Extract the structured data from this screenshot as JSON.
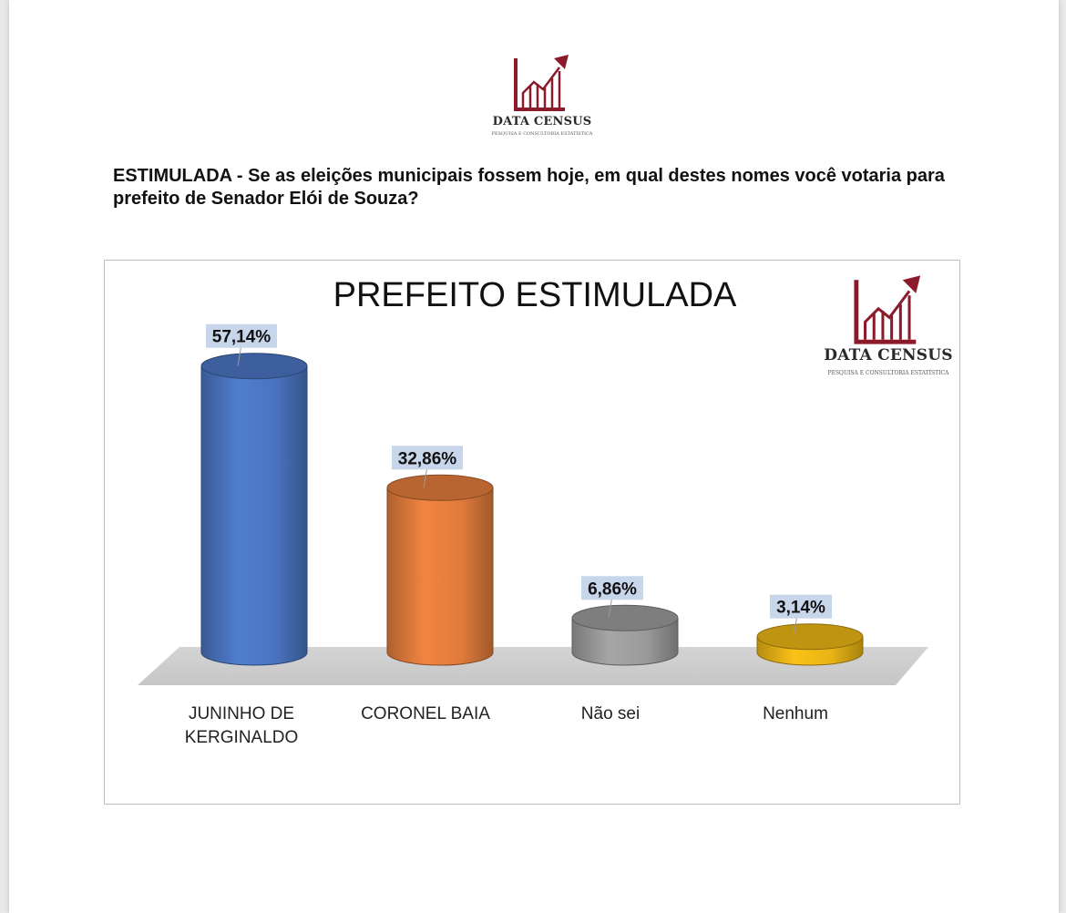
{
  "brand": {
    "name": "DATA CENSUS",
    "tagline": "PESQUISA E CONSULTORIA ESTATÍSTICA",
    "accent_color": "#8b1a2b"
  },
  "question": "ESTIMULADA - Se as eleições municipais fossem hoje, em qual destes nomes você votaria para prefeito de Senador Elói de Souza?",
  "chart_data": {
    "type": "bar",
    "title": "PREFEITO ESTIMULADA",
    "categories": [
      [
        "JUNINHO DE",
        "KERGINALDO"
      ],
      [
        "CORONEL BAIA"
      ],
      [
        "Não sei"
      ],
      [
        "Nenhum"
      ]
    ],
    "values": [
      57.14,
      32.86,
      6.86,
      3.14
    ],
    "value_labels": [
      "57,14%",
      "32,86%",
      "6,86%",
      "3,14%"
    ],
    "colors": [
      "#4a74bf",
      "#e07b3c",
      "#9a9a9a",
      "#e8b415"
    ],
    "ylim": [
      0,
      60
    ],
    "grid": false,
    "legend": "none"
  }
}
